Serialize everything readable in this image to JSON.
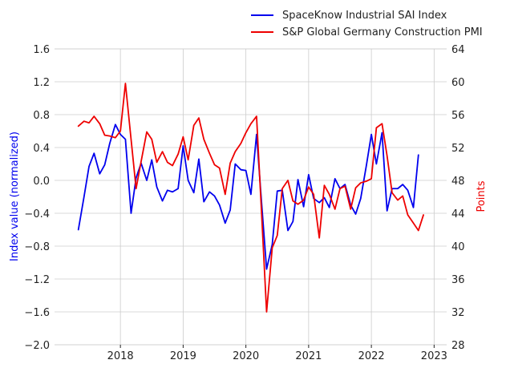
{
  "chart_data": {
    "type": "line",
    "title": "",
    "xlabel": "",
    "ylabel": "Index value (normalized)",
    "y2label": "Points",
    "xlim": [
      2016.95,
      2023.2
    ],
    "ylim": [
      -2.0,
      1.6
    ],
    "y2lim": [
      28,
      64
    ],
    "xticks": [
      2018,
      2019,
      2020,
      2021,
      2022,
      2023
    ],
    "yticks": [
      -2.0,
      -1.6,
      -1.2,
      -0.8,
      -0.4,
      0.0,
      0.4,
      0.8,
      1.2,
      1.6
    ],
    "y2ticks": [
      28,
      32,
      36,
      40,
      44,
      48,
      52,
      56,
      60,
      64
    ],
    "ytick_labels": [
      "−2.0",
      "−1.6",
      "−1.2",
      "−0.8",
      "−0.4",
      "0.0",
      "0.4",
      "0.8",
      "1.2",
      "1.6"
    ],
    "grid": true,
    "legend_position": "top-right",
    "series": [
      {
        "name": "SpaceKnow Industrial SAI Index",
        "axis": "left",
        "color": "#0000ee",
        "points": [
          [
            2017.33,
            -0.6
          ],
          [
            2017.42,
            -0.2
          ],
          [
            2017.5,
            0.17
          ],
          [
            2017.58,
            0.33
          ],
          [
            2017.67,
            0.08
          ],
          [
            2017.75,
            0.19
          ],
          [
            2017.83,
            0.45
          ],
          [
            2017.92,
            0.68
          ],
          [
            2018.0,
            0.56
          ],
          [
            2018.08,
            0.5
          ],
          [
            2018.17,
            -0.4
          ],
          [
            2018.25,
            0.03
          ],
          [
            2018.33,
            0.21
          ],
          [
            2018.42,
            0.0
          ],
          [
            2018.5,
            0.25
          ],
          [
            2018.58,
            -0.08
          ],
          [
            2018.67,
            -0.25
          ],
          [
            2018.75,
            -0.12
          ],
          [
            2018.83,
            -0.14
          ],
          [
            2018.92,
            -0.1
          ],
          [
            2019.0,
            0.42
          ],
          [
            2019.08,
            0.0
          ],
          [
            2019.17,
            -0.15
          ],
          [
            2019.25,
            0.26
          ],
          [
            2019.33,
            -0.26
          ],
          [
            2019.42,
            -0.14
          ],
          [
            2019.5,
            -0.19
          ],
          [
            2019.58,
            -0.3
          ],
          [
            2019.67,
            -0.52
          ],
          [
            2019.75,
            -0.36
          ],
          [
            2019.83,
            0.2
          ],
          [
            2019.92,
            0.13
          ],
          [
            2020.0,
            0.12
          ],
          [
            2020.08,
            -0.17
          ],
          [
            2020.17,
            0.56
          ],
          [
            2020.25,
            -0.27
          ],
          [
            2020.33,
            -1.08
          ],
          [
            2020.42,
            -0.78
          ],
          [
            2020.5,
            -0.13
          ],
          [
            2020.58,
            -0.12
          ],
          [
            2020.67,
            -0.61
          ],
          [
            2020.75,
            -0.5
          ],
          [
            2020.83,
            0.01
          ],
          [
            2020.92,
            -0.32
          ],
          [
            2021.0,
            0.07
          ],
          [
            2021.08,
            -0.22
          ],
          [
            2021.17,
            -0.27
          ],
          [
            2021.25,
            -0.21
          ],
          [
            2021.33,
            -0.33
          ],
          [
            2021.42,
            0.02
          ],
          [
            2021.5,
            -0.1
          ],
          [
            2021.58,
            -0.05
          ],
          [
            2021.67,
            -0.3
          ],
          [
            2021.75,
            -0.41
          ],
          [
            2021.83,
            -0.22
          ],
          [
            2021.92,
            0.18
          ],
          [
            2022.0,
            0.56
          ],
          [
            2022.08,
            0.2
          ],
          [
            2022.17,
            0.58
          ],
          [
            2022.25,
            -0.37
          ],
          [
            2022.33,
            -0.1
          ],
          [
            2022.42,
            -0.1
          ],
          [
            2022.5,
            -0.05
          ],
          [
            2022.58,
            -0.12
          ],
          [
            2022.67,
            -0.33
          ],
          [
            2022.75,
            0.31
          ]
        ]
      },
      {
        "name": "S&P Global Germany Construction PMI",
        "axis": "right",
        "color": "#ee0000",
        "points": [
          [
            2017.33,
            54.6
          ],
          [
            2017.42,
            55.2
          ],
          [
            2017.5,
            55.0
          ],
          [
            2017.58,
            55.8
          ],
          [
            2017.67,
            54.9
          ],
          [
            2017.75,
            53.5
          ],
          [
            2017.83,
            53.4
          ],
          [
            2017.92,
            53.2
          ],
          [
            2018.0,
            54.0
          ],
          [
            2018.08,
            59.8
          ],
          [
            2018.17,
            53.0
          ],
          [
            2018.25,
            47.0
          ],
          [
            2018.33,
            50.3
          ],
          [
            2018.42,
            53.9
          ],
          [
            2018.5,
            53.0
          ],
          [
            2018.58,
            50.2
          ],
          [
            2018.67,
            51.5
          ],
          [
            2018.75,
            50.2
          ],
          [
            2018.83,
            49.8
          ],
          [
            2018.92,
            51.2
          ],
          [
            2019.0,
            53.3
          ],
          [
            2019.08,
            50.5
          ],
          [
            2019.17,
            54.7
          ],
          [
            2019.25,
            55.6
          ],
          [
            2019.33,
            53.0
          ],
          [
            2019.42,
            51.3
          ],
          [
            2019.5,
            49.9
          ],
          [
            2019.58,
            49.5
          ],
          [
            2019.67,
            46.3
          ],
          [
            2019.75,
            50.1
          ],
          [
            2019.83,
            51.5
          ],
          [
            2019.92,
            52.5
          ],
          [
            2020.0,
            53.8
          ],
          [
            2020.08,
            54.9
          ],
          [
            2020.17,
            55.8
          ],
          [
            2020.25,
            44.0
          ],
          [
            2020.33,
            32.0
          ],
          [
            2020.42,
            39.8
          ],
          [
            2020.5,
            41.3
          ],
          [
            2020.58,
            47.0
          ],
          [
            2020.67,
            48.0
          ],
          [
            2020.75,
            45.5
          ],
          [
            2020.83,
            45.1
          ],
          [
            2020.92,
            45.6
          ],
          [
            2021.0,
            47.2
          ],
          [
            2021.08,
            46.3
          ],
          [
            2021.17,
            41.0
          ],
          [
            2021.25,
            47.4
          ],
          [
            2021.33,
            46.3
          ],
          [
            2021.42,
            44.5
          ],
          [
            2021.5,
            47.0
          ],
          [
            2021.58,
            47.3
          ],
          [
            2021.67,
            44.5
          ],
          [
            2021.75,
            47.1
          ],
          [
            2021.83,
            47.7
          ],
          [
            2021.92,
            47.9
          ],
          [
            2022.0,
            48.2
          ],
          [
            2022.08,
            54.4
          ],
          [
            2022.17,
            54.9
          ],
          [
            2022.25,
            51.0
          ],
          [
            2022.33,
            46.5
          ],
          [
            2022.42,
            45.6
          ],
          [
            2022.5,
            46.1
          ],
          [
            2022.58,
            43.8
          ],
          [
            2022.67,
            42.8
          ],
          [
            2022.75,
            41.9
          ],
          [
            2022.83,
            43.8
          ]
        ]
      }
    ]
  }
}
